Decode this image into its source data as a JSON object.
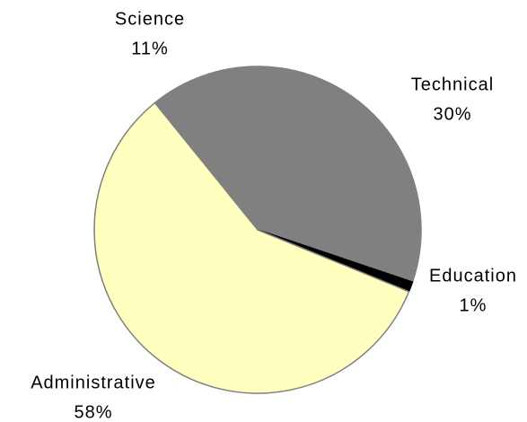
{
  "chart_data": {
    "type": "pie",
    "categories": [
      "Science",
      "Technical",
      "Education",
      "Administrative"
    ],
    "values": [
      11,
      30,
      1,
      58
    ],
    "value_labels": [
      "11%",
      "30%",
      "1%",
      "58%"
    ],
    "colors": [
      "#808080",
      "#808080",
      "#000000",
      "#ffffc0"
    ]
  }
}
